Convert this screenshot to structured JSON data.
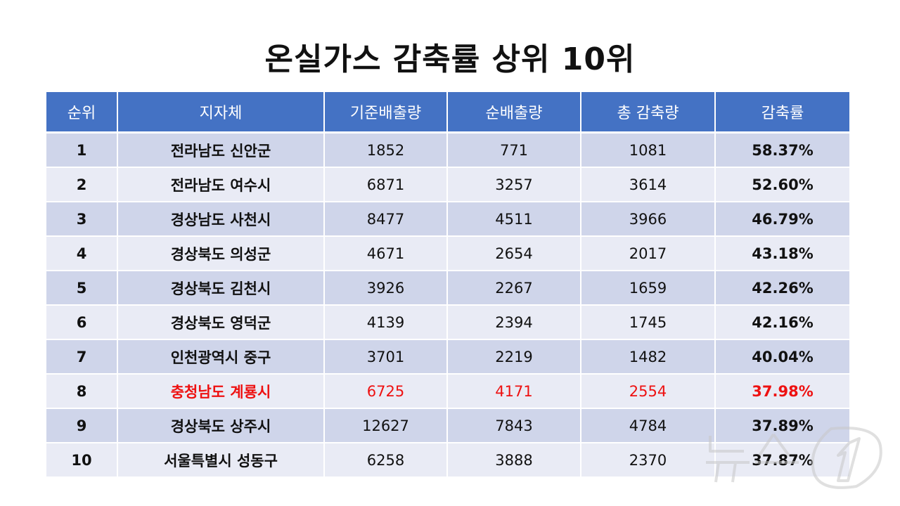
{
  "title": "온실가스 감축률 상위 10위",
  "headers": [
    "순위",
    "지자체",
    "기준배출량",
    "순배출량",
    "총 감축량",
    "감축률"
  ],
  "rows": [
    {
      "rank": "1",
      "region": "전라남도 신안군",
      "base": "1852",
      "net": "771",
      "total": "1081",
      "rate": "58.37%"
    },
    {
      "rank": "2",
      "region": "전라남도 여수시",
      "base": "6871",
      "net": "3257",
      "total": "3614",
      "rate": "52.60%"
    },
    {
      "rank": "3",
      "region": "경상남도 사천시",
      "base": "8477",
      "net": "4511",
      "total": "3966",
      "rate": "46.79%"
    },
    {
      "rank": "4",
      "region": "경상북도 의성군",
      "base": "4671",
      "net": "2654",
      "total": "2017",
      "rate": "43.18%"
    },
    {
      "rank": "5",
      "region": "경상북도 김천시",
      "base": "3926",
      "net": "2267",
      "total": "1659",
      "rate": "42.26%"
    },
    {
      "rank": "6",
      "region": "경상북도 영덕군",
      "base": "4139",
      "net": "2394",
      "total": "1745",
      "rate": "42.16%"
    },
    {
      "rank": "7",
      "region": "인천광역시 중구",
      "base": "3701",
      "net": "2219",
      "total": "1482",
      "rate": "40.04%"
    },
    {
      "rank": "8",
      "region": "충청남도 계룡시",
      "base": "6725",
      "net": "4171",
      "total": "2554",
      "rate": "37.98%"
    },
    {
      "rank": "9",
      "region": "경상북도 상주시",
      "base": "12627",
      "net": "7843",
      "total": "4784",
      "rate": "37.89%"
    },
    {
      "rank": "10",
      "region": "서울특별시 성동구",
      "base": "6258",
      "net": "3888",
      "total": "2370",
      "rate": "37.87%"
    }
  ],
  "highlight_color": "#ee1111",
  "header_color": "#4472c4",
  "row_odd_color": "#cfd5ea",
  "row_even_color": "#e9ebf5",
  "watermark": {
    "text": "뉴스1",
    "icon": "news1-logo"
  }
}
